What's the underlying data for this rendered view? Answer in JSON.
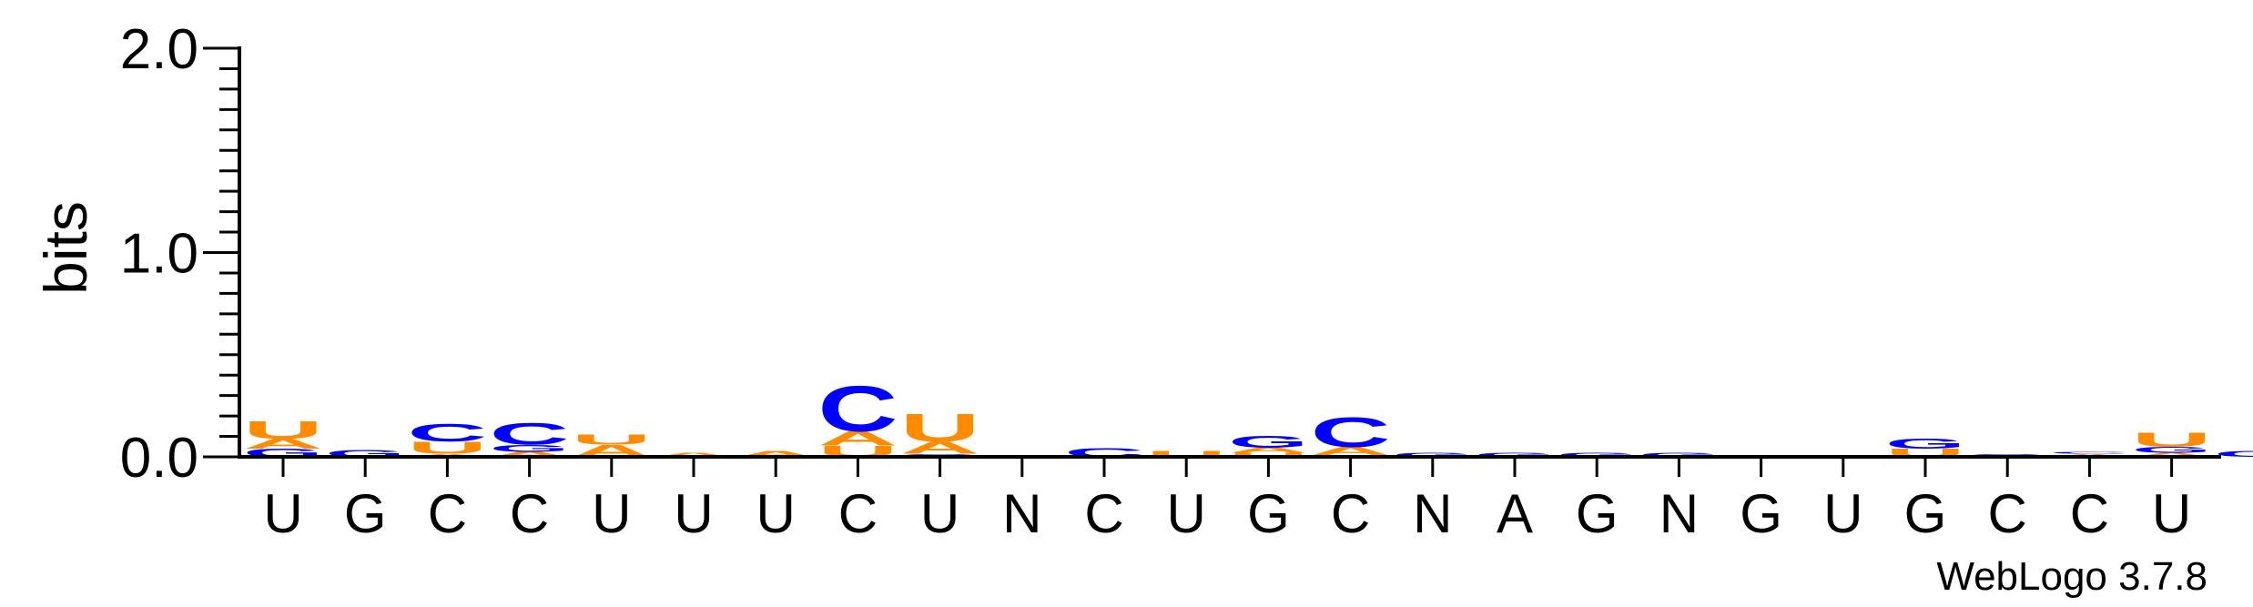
{
  "chart_data": {
    "type": "sequence-logo",
    "ylabel": "bits",
    "ylim": [
      0,
      2.0
    ],
    "y_ticks": [
      "0.0",
      "1.0",
      "2.0"
    ],
    "y_tick_values": [
      0,
      1,
      2
    ],
    "y_minor_ticks_per_unit": 10,
    "credit": "WebLogo 3.7.8",
    "colors": {
      "A": "#ff8c00",
      "U": "#ff8c00",
      "C": "#0000ff",
      "G": "#0000ff"
    },
    "positions": [
      {
        "label": "U",
        "stack": [
          [
            "G",
            0.04
          ],
          [
            "A",
            0.05
          ],
          [
            "U",
            0.09
          ]
        ]
      },
      {
        "label": "G",
        "stack": [
          [
            "G",
            0.035
          ]
        ]
      },
      {
        "label": "C",
        "stack": [
          [
            "A",
            0.015
          ],
          [
            "U",
            0.06
          ],
          [
            "C",
            0.09
          ]
        ]
      },
      {
        "label": "C",
        "stack": [
          [
            "A",
            0.025
          ],
          [
            "G",
            0.035
          ],
          [
            "C",
            0.11
          ]
        ]
      },
      {
        "label": "U",
        "stack": [
          [
            "A",
            0.06
          ],
          [
            "U",
            0.05
          ]
        ]
      },
      {
        "label": "U",
        "stack": [
          [
            "A",
            0.02
          ]
        ]
      },
      {
        "label": "U",
        "stack": [
          [
            "A",
            0.03
          ]
        ]
      },
      {
        "label": "C",
        "stack": [
          [
            "U",
            0.055
          ],
          [
            "A",
            0.07
          ],
          [
            "C",
            0.23
          ]
        ]
      },
      {
        "label": "U",
        "stack": [
          [
            "G",
            0.015
          ],
          [
            "A",
            0.06
          ],
          [
            "U",
            0.14
          ]
        ]
      },
      {
        "label": "N",
        "stack": []
      },
      {
        "label": "C",
        "stack": [
          [
            "C",
            0.045
          ]
        ]
      },
      {
        "label": "U",
        "stack": [
          [
            "U",
            0.03
          ]
        ]
      },
      {
        "label": "G",
        "stack": [
          [
            "U",
            0.02
          ],
          [
            "A",
            0.025
          ],
          [
            "G",
            0.06
          ]
        ]
      },
      {
        "label": "C",
        "stack": [
          [
            "G",
            0.01
          ],
          [
            "A",
            0.04
          ],
          [
            "C",
            0.15
          ]
        ]
      },
      {
        "label": "N",
        "stack": [
          [
            "G",
            0.02
          ]
        ]
      },
      {
        "label": "A",
        "stack": [
          [
            "G",
            0.02
          ]
        ]
      },
      {
        "label": "G",
        "stack": [
          [
            "G",
            0.02
          ]
        ]
      },
      {
        "label": "N",
        "stack": [
          [
            "G",
            0.02
          ]
        ]
      },
      {
        "label": "G",
        "stack": [
          [
            "U",
            0.01
          ]
        ]
      },
      {
        "label": "U",
        "stack": []
      },
      {
        "label": "G",
        "stack": [
          [
            "U",
            0.04
          ],
          [
            "G",
            0.05
          ]
        ]
      },
      {
        "label": "C",
        "stack": [
          [
            "G",
            0.015
          ]
        ]
      },
      {
        "label": "C",
        "stack": [
          [
            "A",
            0.015
          ],
          [
            "C",
            0.01
          ]
        ]
      },
      {
        "label": "U",
        "stack": [
          [
            "A",
            0.02
          ],
          [
            "G",
            0.03
          ],
          [
            "U",
            0.07
          ]
        ]
      },
      {
        "label": "",
        "stack": [
          [
            "C",
            0.03
          ]
        ]
      }
    ]
  }
}
